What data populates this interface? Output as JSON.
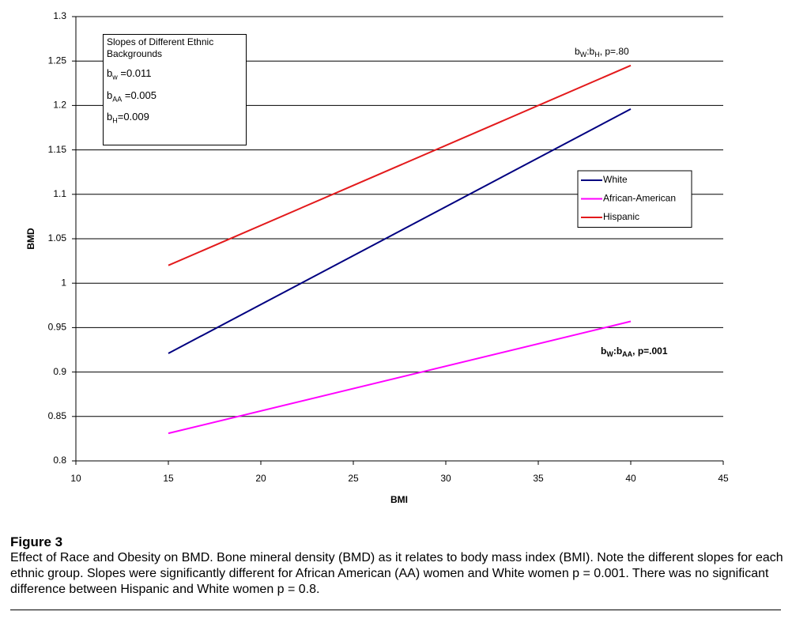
{
  "chart_data": {
    "type": "line",
    "x_label": "BMI",
    "y_label": "BMD",
    "x": [
      15,
      40
    ],
    "series": [
      {
        "name": "White",
        "color": "#000080",
        "values": [
          0.921,
          1.196
        ]
      },
      {
        "name": "African-American",
        "color": "#ff00ff",
        "values": [
          0.831,
          0.957
        ]
      },
      {
        "name": "Hispanic",
        "color": "#e31a1c",
        "values": [
          1.02,
          1.245
        ]
      }
    ],
    "xlim": [
      10,
      45
    ],
    "xticks": [
      10,
      15,
      20,
      25,
      30,
      35,
      40,
      45
    ],
    "ylim": [
      0.8,
      1.3
    ],
    "yticks": [
      0.8,
      0.85,
      0.9,
      0.95,
      1,
      1.05,
      1.1,
      1.15,
      1.2,
      1.25,
      1.3
    ],
    "grid": true,
    "legend": "right",
    "note": {
      "title": "Slopes of Different Ethnic Backgrounds",
      "lines": [
        [
          "b",
          "w",
          " =0.011"
        ],
        [
          "b",
          "AA",
          " =0.005"
        ],
        [
          "b",
          "H",
          "=0.009"
        ]
      ]
    },
    "annotations": [
      {
        "segments": [
          "b",
          "W",
          ":b",
          "H",
          ", p=.80"
        ]
      },
      {
        "segments": [
          "b",
          "W",
          ":b",
          "AA",
          ", p=.001"
        ]
      }
    ]
  },
  "caption": {
    "label": "Figure 3",
    "text": "Effect of Race and Obesity on BMD. Bone mineral density (BMD) as it relates to body mass index (BMI). Note the different slopes for each ethnic group. Slopes were significantly different for African American (AA) women and White women p = 0.001. There was no significant difference between Hispanic and White women p = 0.8."
  }
}
